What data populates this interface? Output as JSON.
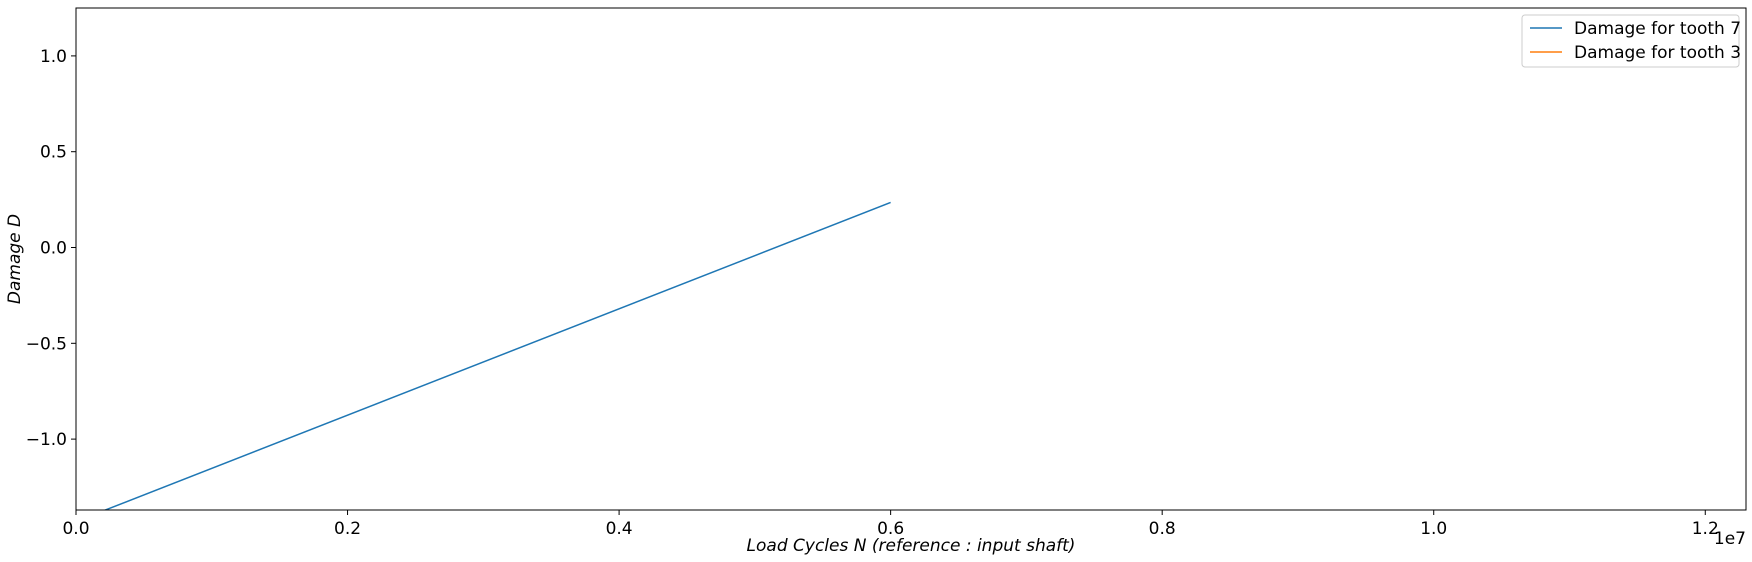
{
  "chart_data": {
    "type": "line",
    "title": "",
    "xlabel": "Load Cycles N (reference :  input shaft)",
    "ylabel": "Damage D",
    "x_offset_text": "1e7",
    "x_scale": 10000000,
    "xlim": [
      0,
      12300000
    ],
    "ylim": [
      -1.37,
      1.25
    ],
    "x_ticks": [
      0,
      2000000,
      4000000,
      6000000,
      8000000,
      10000000,
      12000000
    ],
    "x_tick_labels": [
      "0.0",
      "0.2",
      "0.4",
      "0.6",
      "0.8",
      "1.0",
      "1.2"
    ],
    "y_ticks": [
      -1.0,
      -0.5,
      0.0,
      0.5,
      1.0
    ],
    "y_tick_labels": [
      "−1.0",
      "−0.5",
      "0.0",
      "0.5",
      "1.0"
    ],
    "grid": false,
    "legend_position": "top-right",
    "series": [
      {
        "name": "Damage for tooth 7",
        "color": "#1f77b4",
        "x": [
          0,
          6000000
        ],
        "y": [
          -1.43,
          0.235
        ]
      },
      {
        "name": "Damage for tooth 3",
        "color": "#ff7f0e",
        "x": [],
        "y": []
      }
    ]
  }
}
